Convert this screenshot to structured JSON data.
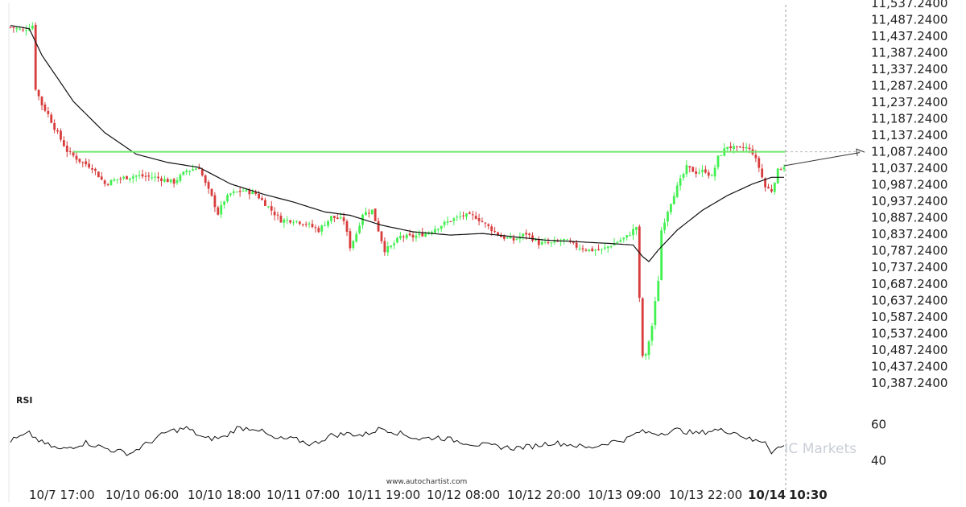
{
  "chart_data": {
    "type": "candlestick",
    "title": "",
    "y_ticks": [
      "11,537.2400",
      "11,487.2400",
      "11,437.2400",
      "11,387.2400",
      "11,337.2400",
      "11,287.2400",
      "11,237.2400",
      "11,187.2400",
      "11,137.2400",
      "11,087.2400",
      "11,037.2400",
      "10,987.2400",
      "10,937.2400",
      "10,887.2400",
      "10,837.2400",
      "10,787.2400",
      "10,737.2400",
      "10,687.2400",
      "10,637.2400",
      "10,587.2400",
      "10,537.2400",
      "10,487.2400",
      "10,437.2400",
      "10,387.2400"
    ],
    "ylim": [
      10372.24,
      11537.24
    ],
    "x_ticks": [
      {
        "label": "10/7 17:00",
        "bold": false
      },
      {
        "label": "10/10 06:00",
        "bold": false
      },
      {
        "label": "10/10 18:00",
        "bold": false
      },
      {
        "label": "10/11 07:00",
        "bold": false
      },
      {
        "label": "10/11 19:00",
        "bold": false
      },
      {
        "label": "10/12 08:00",
        "bold": false
      },
      {
        "label": "10/12 20:00",
        "bold": false
      },
      {
        "label": "10/13 09:00",
        "bold": false
      },
      {
        "label": "10/13 22:00",
        "bold": false
      },
      {
        "label": "10/14",
        "bold": true
      },
      {
        "label": "10:30",
        "bold": true
      }
    ],
    "resistance_level": 11087.24,
    "close_keypoints": [
      [
        0,
        11465
      ],
      [
        4,
        11455
      ],
      [
        7,
        11470
      ],
      [
        8,
        11280
      ],
      [
        10,
        11230
      ],
      [
        12,
        11200
      ],
      [
        14,
        11160
      ],
      [
        18,
        11090
      ],
      [
        22,
        11060
      ],
      [
        26,
        11040
      ],
      [
        30,
        10990
      ],
      [
        34,
        11005
      ],
      [
        40,
        11015
      ],
      [
        46,
        11010
      ],
      [
        52,
        10995
      ],
      [
        56,
        11030
      ],
      [
        60,
        11040
      ],
      [
        62,
        10990
      ],
      [
        64,
        10950
      ],
      [
        66,
        10900
      ],
      [
        68,
        10940
      ],
      [
        70,
        10960
      ],
      [
        74,
        10970
      ],
      [
        78,
        10960
      ],
      [
        82,
        10920
      ],
      [
        86,
        10880
      ],
      [
        90,
        10880
      ],
      [
        94,
        10870
      ],
      [
        98,
        10850
      ],
      [
        102,
        10890
      ],
      [
        106,
        10880
      ],
      [
        108,
        10800
      ],
      [
        110,
        10840
      ],
      [
        112,
        10900
      ],
      [
        115,
        10910
      ],
      [
        117,
        10850
      ],
      [
        119,
        10790
      ],
      [
        121,
        10800
      ],
      [
        124,
        10830
      ],
      [
        128,
        10830
      ],
      [
        132,
        10840
      ],
      [
        136,
        10860
      ],
      [
        140,
        10880
      ],
      [
        144,
        10895
      ],
      [
        148,
        10890
      ],
      [
        152,
        10860
      ],
      [
        156,
        10830
      ],
      [
        160,
        10820
      ],
      [
        164,
        10840
      ],
      [
        168,
        10810
      ],
      [
        172,
        10810
      ],
      [
        176,
        10820
      ],
      [
        180,
        10800
      ],
      [
        184,
        10790
      ],
      [
        188,
        10790
      ],
      [
        192,
        10810
      ],
      [
        196,
        10830
      ],
      [
        199,
        10860
      ],
      [
        200,
        10640
      ],
      [
        201,
        10470
      ],
      [
        202,
        10470
      ],
      [
        204,
        10560
      ],
      [
        206,
        10700
      ],
      [
        207,
        10850
      ],
      [
        209,
        10910
      ],
      [
        211,
        10960
      ],
      [
        213,
        11000
      ],
      [
        215,
        11040
      ],
      [
        218,
        11025
      ],
      [
        221,
        11030
      ],
      [
        223,
        11010
      ],
      [
        225,
        11070
      ],
      [
        228,
        11105
      ],
      [
        231,
        11095
      ],
      [
        234,
        11100
      ],
      [
        236,
        11085
      ],
      [
        238,
        11040
      ],
      [
        240,
        10980
      ],
      [
        242,
        10970
      ],
      [
        244,
        11030
      ],
      [
        246,
        11045
      ]
    ],
    "ma_keypoints": [
      [
        0,
        11470
      ],
      [
        6,
        11460
      ],
      [
        10,
        11380
      ],
      [
        20,
        11240
      ],
      [
        30,
        11145
      ],
      [
        40,
        11080
      ],
      [
        50,
        11055
      ],
      [
        60,
        11040
      ],
      [
        70,
        10990
      ],
      [
        80,
        10960
      ],
      [
        90,
        10935
      ],
      [
        100,
        10905
      ],
      [
        108,
        10895
      ],
      [
        118,
        10865
      ],
      [
        128,
        10845
      ],
      [
        140,
        10835
      ],
      [
        150,
        10840
      ],
      [
        160,
        10830
      ],
      [
        170,
        10820
      ],
      [
        180,
        10815
      ],
      [
        190,
        10810
      ],
      [
        198,
        10805
      ],
      [
        201,
        10770
      ],
      [
        203,
        10755
      ],
      [
        206,
        10790
      ],
      [
        212,
        10850
      ],
      [
        220,
        10910
      ],
      [
        228,
        10955
      ],
      [
        236,
        10990
      ],
      [
        242,
        11010
      ],
      [
        246,
        11010
      ]
    ],
    "rsi": {
      "label": "RSI",
      "ticks": [
        60,
        40
      ],
      "ylim": [
        30,
        70
      ],
      "keypoints": [
        [
          0,
          51
        ],
        [
          6,
          55
        ],
        [
          10,
          50
        ],
        [
          16,
          46
        ],
        [
          24,
          50
        ],
        [
          32,
          46
        ],
        [
          38,
          44
        ],
        [
          44,
          50
        ],
        [
          50,
          56
        ],
        [
          56,
          58
        ],
        [
          62,
          52
        ],
        [
          68,
          53
        ],
        [
          72,
          58
        ],
        [
          78,
          58
        ],
        [
          84,
          52
        ],
        [
          90,
          52
        ],
        [
          96,
          49
        ],
        [
          102,
          54
        ],
        [
          108,
          55
        ],
        [
          112,
          54
        ],
        [
          118,
          58
        ],
        [
          124,
          55
        ],
        [
          130,
          52
        ],
        [
          136,
          53
        ],
        [
          142,
          51
        ],
        [
          148,
          49
        ],
        [
          154,
          48
        ],
        [
          160,
          47
        ],
        [
          166,
          48
        ],
        [
          172,
          50
        ],
        [
          178,
          49
        ],
        [
          184,
          47
        ],
        [
          190,
          50
        ],
        [
          196,
          52
        ],
        [
          200,
          56
        ],
        [
          206,
          55
        ],
        [
          212,
          57
        ],
        [
          218,
          55
        ],
        [
          224,
          57
        ],
        [
          230,
          56
        ],
        [
          236,
          51
        ],
        [
          240,
          51
        ],
        [
          242,
          45
        ],
        [
          244,
          47
        ],
        [
          246,
          48
        ]
      ]
    },
    "colors": {
      "up": "#42f050",
      "down": "#d83c3c",
      "ma": "#111111",
      "resistance": "#6fe86f",
      "rsi": "#111111"
    }
  },
  "watermark": "www.autochartist.com",
  "brand": "IC Markets"
}
